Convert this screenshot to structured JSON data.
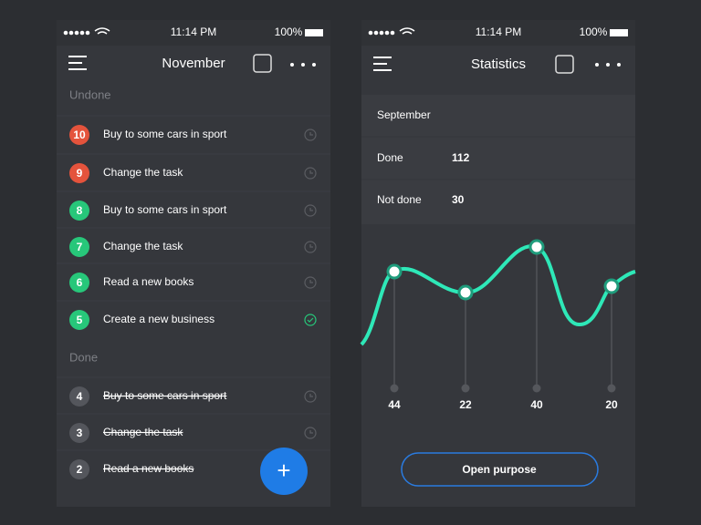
{
  "left_screen": {
    "status_bar": {
      "time": "11:14 PM",
      "battery": "100%"
    },
    "header": {
      "title": "November"
    },
    "undone": {
      "label": "Undone",
      "items": [
        {
          "number": 10,
          "text": "Buy to some cars in sport",
          "color": "#e4533c",
          "icon": "clock"
        },
        {
          "number": 9,
          "text": "Change the task",
          "color": "#e4533c",
          "icon": "clock"
        },
        {
          "number": 8,
          "text": "Buy to some cars in sport",
          "color": "#27c77a",
          "icon": "clock"
        },
        {
          "number": 7,
          "text": "Change the task",
          "color": "#27c77a",
          "icon": "clock"
        },
        {
          "number": 6,
          "text": "Read a new books",
          "color": "#27c77a",
          "icon": "clock"
        },
        {
          "number": 5,
          "text": "Create a new business",
          "color": "#27c77a",
          "icon": "check"
        }
      ]
    },
    "done": {
      "label": "Done",
      "items": [
        {
          "number": 4,
          "text": "Buy to some cars in sport",
          "color": "#54565c",
          "icon": "clock"
        },
        {
          "number": 3,
          "text": "Change the task",
          "color": "#54565c",
          "icon": "clock"
        },
        {
          "number": 2,
          "text": "Read a new books",
          "color": "#54565c",
          "icon": "none"
        }
      ]
    },
    "fab": "+"
  },
  "right_screen": {
    "status_bar": {
      "time": "11:14 PM",
      "battery": "100%"
    },
    "header": {
      "title": "Statistics"
    },
    "month": "September",
    "rows": [
      {
        "label": "Done",
        "value": 112,
        "color": "#2fd48a"
      },
      {
        "label": "Not done",
        "value": 30,
        "color": "#e4533c"
      }
    ],
    "point_labels": [
      44,
      22,
      40,
      20
    ],
    "button": "Open purpose"
  }
}
